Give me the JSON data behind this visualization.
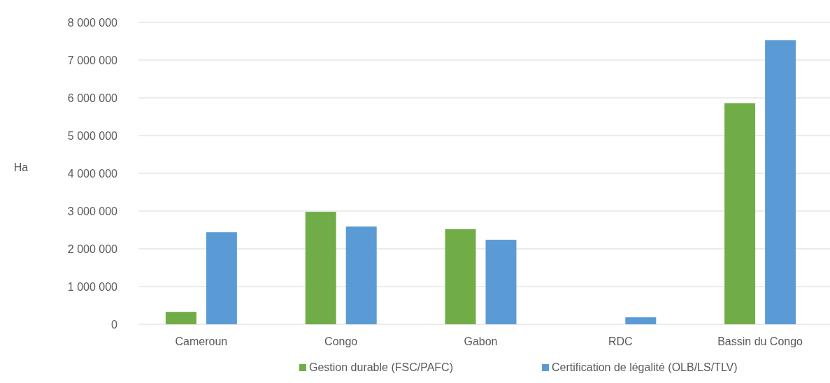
{
  "chart_data": {
    "type": "bar",
    "ylabel": "Ha",
    "categories": [
      "Cameroun",
      "Congo",
      "Gabon",
      "RDC",
      "Bassin du Congo"
    ],
    "series": [
      {
        "name": "Gestion durable (FSC/PAFC)",
        "color": "#70ad47",
        "values": [
          330000,
          2980000,
          2520000,
          0,
          5860000
        ]
      },
      {
        "name": "Certification de légalité (OLB/LS/TLV)",
        "color": "#5b9bd5",
        "values": [
          2440000,
          2590000,
          2240000,
          185000,
          7530000
        ]
      }
    ],
    "ylim": [
      0,
      8000000
    ],
    "yticks": [
      0,
      {
        "value": 1000000,
        "label": "1 000 000"
      },
      {
        "value": 2000000,
        "label": "2 000 000"
      },
      {
        "value": 3000000,
        "label": "3 000 000"
      },
      {
        "value": 4000000,
        "label": "4 000 000"
      },
      {
        "value": 5000000,
        "label": "5 000 000"
      },
      {
        "value": 6000000,
        "label": "6 000 000"
      },
      {
        "value": 7000000,
        "label": "7 000 000"
      },
      {
        "value": 8000000,
        "label": "8 000 000"
      }
    ],
    "grid": "y",
    "legend": "bottom"
  }
}
